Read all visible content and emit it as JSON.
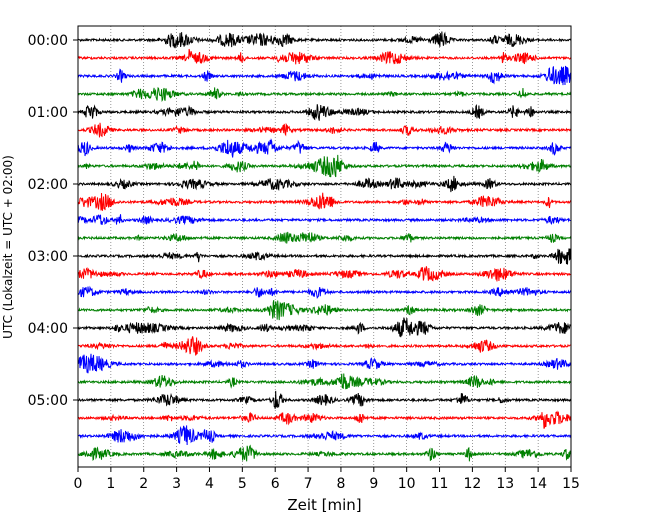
{
  "chart_data": {
    "type": "line",
    "subtype": "helicorder",
    "xlabel": "Zeit  [min]",
    "ylabel": "UTC (Lokalzeit = UTC + 02:00)",
    "xlim": [
      0,
      15
    ],
    "x_ticks": [
      "0",
      "1",
      "2",
      "3",
      "4",
      "5",
      "6",
      "7",
      "8",
      "9",
      "10",
      "11",
      "12",
      "13",
      "14",
      "15"
    ],
    "y_tick_labels": [
      "00:00",
      "01:00",
      "02:00",
      "03:00",
      "04:00",
      "05:00"
    ],
    "traces_per_hour": 4,
    "trace_colors": [
      "#000000",
      "#ff0000",
      "#0000ff",
      "#008000"
    ],
    "row_count": 24,
    "x_grid": "dotted vertical lines at each minute"
  }
}
